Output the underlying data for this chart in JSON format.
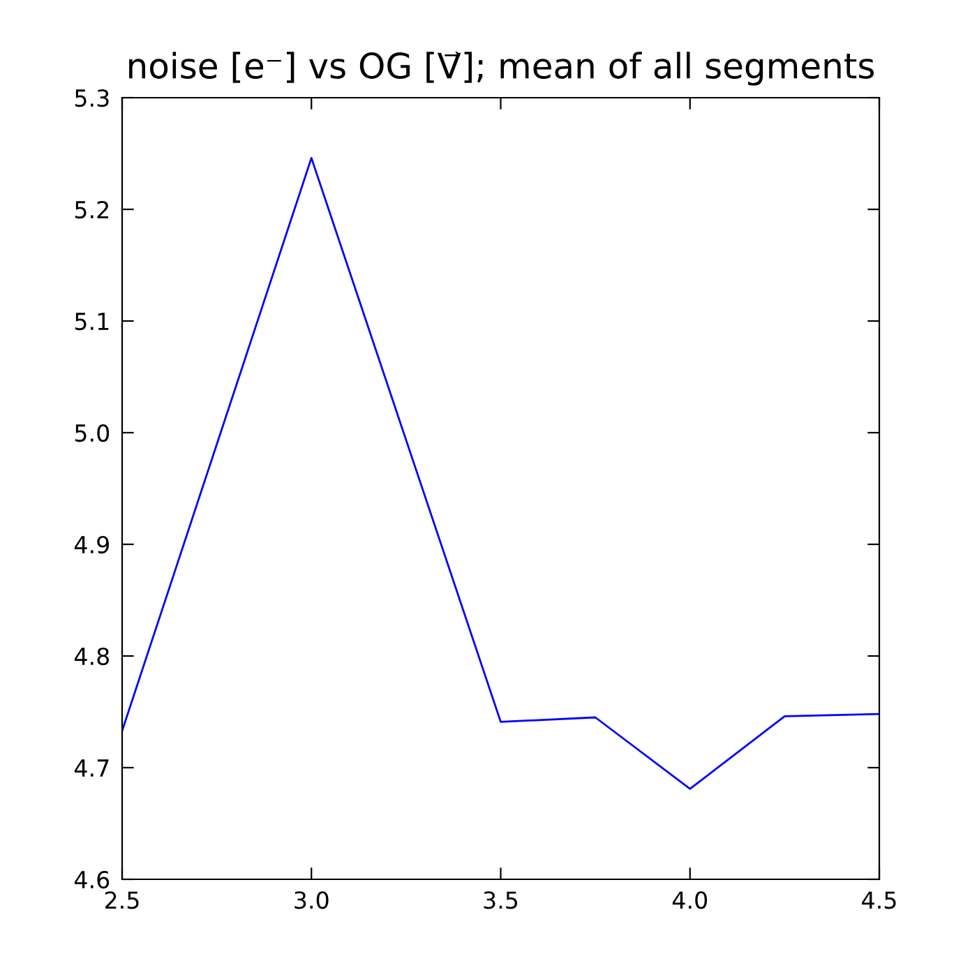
{
  "chart_data": {
    "type": "line",
    "title": "noise [e⁻] vs OG [V⃗]; mean of all segments",
    "x": [
      2.5,
      3.0,
      3.5,
      3.75,
      4.0,
      4.25,
      4.5
    ],
    "series": [
      {
        "color": "#0000ff",
        "values": [
          4.733,
          5.246,
          4.741,
          4.745,
          4.681,
          4.746,
          4.748
        ]
      }
    ],
    "xlim": [
      2.5,
      4.5
    ],
    "xticks": [
      {
        "value": 2.5,
        "label": "2.5"
      },
      {
        "value": 3.0,
        "label": "3.0"
      },
      {
        "value": 3.5,
        "label": "3.5"
      },
      {
        "value": 4.0,
        "label": "4.0"
      },
      {
        "value": 4.5,
        "label": "4.5"
      }
    ],
    "ylim": [
      4.6,
      5.3
    ],
    "yticks": [
      {
        "value": 4.6,
        "label": "4.6"
      },
      {
        "value": 4.7,
        "label": "4.7"
      },
      {
        "value": 4.8,
        "label": "4.8"
      },
      {
        "value": 4.9,
        "label": "4.9"
      },
      {
        "value": 5.0,
        "label": "5.0"
      },
      {
        "value": 5.1,
        "label": "5.1"
      },
      {
        "value": 5.2,
        "label": "5.2"
      },
      {
        "value": 5.3,
        "label": "5.3"
      }
    ],
    "grid": false,
    "legend": false,
    "marker": "none",
    "line_style": "solid"
  }
}
